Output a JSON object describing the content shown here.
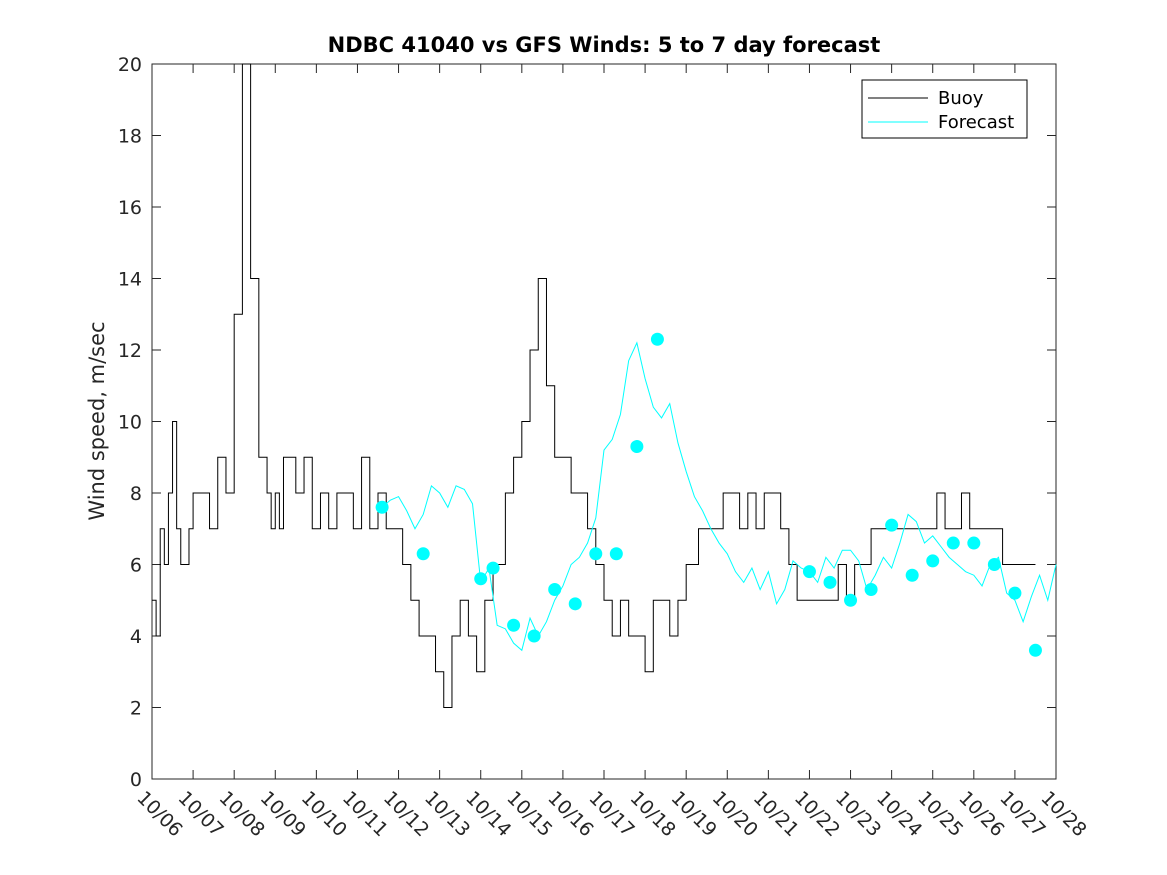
{
  "chart_data": {
    "type": "line",
    "title": "NDBC 41040 vs GFS Winds: 5 to 7 day forecast",
    "xlabel": "",
    "ylabel": "Wind speed, m/sec",
    "xlim": [
      0,
      22
    ],
    "ylim": [
      0,
      20
    ],
    "x_tick_labels": [
      "10/06",
      "10/07",
      "10/08",
      "10/09",
      "10/10",
      "10/11",
      "10/12",
      "10/13",
      "10/14",
      "10/15",
      "10/16",
      "10/17",
      "10/18",
      "10/19",
      "10/20",
      "10/21",
      "10/22",
      "10/23",
      "10/24",
      "10/25",
      "10/26",
      "10/27",
      "10/28"
    ],
    "y_ticks": [
      0,
      2,
      4,
      6,
      8,
      10,
      12,
      14,
      16,
      18,
      20
    ],
    "grid": false,
    "legend": {
      "position": "top-right",
      "entries": [
        "Buoy",
        "Forecast"
      ]
    },
    "colors": {
      "buoy": "#000000",
      "forecast": "#00ffff",
      "markers": "#00ffff"
    },
    "series": [
      {
        "name": "Buoy",
        "x": [
          0,
          0.1,
          0.2,
          0.3,
          0.4,
          0.5,
          0.6,
          0.7,
          0.9,
          1.0,
          1.2,
          1.4,
          1.6,
          1.8,
          2.0,
          2.2,
          2.4,
          2.6,
          2.8,
          2.9,
          3.0,
          3.1,
          3.2,
          3.3,
          3.5,
          3.7,
          3.9,
          4.1,
          4.3,
          4.5,
          4.7,
          4.9,
          5.1,
          5.3,
          5.5,
          5.7,
          5.9,
          6.1,
          6.3,
          6.5,
          6.7,
          6.9,
          7.1,
          7.3,
          7.5,
          7.7,
          7.9,
          8.1,
          8.3,
          8.5,
          8.6,
          8.7,
          8.8,
          9.0,
          9.2,
          9.4,
          9.6,
          9.8,
          10.0,
          10.2,
          10.4,
          10.6,
          10.8,
          11.0,
          11.2,
          11.4,
          11.6,
          11.8,
          12.0,
          12.2,
          12.4,
          12.6,
          12.8,
          12.9,
          13.0,
          13.1,
          13.2,
          13.3,
          13.5,
          13.7,
          13.9,
          14.1,
          14.3,
          14.5,
          14.7,
          14.9,
          15.1,
          15.3,
          15.5,
          15.7,
          15.9,
          16.1,
          16.3,
          16.5,
          16.7,
          16.9,
          17.1,
          17.3,
          17.5,
          17.7,
          17.9,
          18.1,
          18.3,
          18.5,
          18.7,
          18.9,
          19.1,
          19.3,
          19.5,
          19.7,
          19.9,
          20.1,
          20.3,
          20.5,
          20.7,
          20.9,
          21.1,
          21.3,
          21.5
        ],
        "y": [
          5,
          4,
          7,
          6,
          8,
          10,
          7,
          6,
          7,
          8,
          8,
          7,
          9,
          8,
          13,
          20,
          14,
          9,
          8,
          7,
          8,
          7,
          9,
          9,
          8,
          9,
          7,
          8,
          7,
          8,
          8,
          7,
          9,
          7,
          8,
          7,
          7,
          6,
          5,
          4,
          4,
          3,
          2,
          4,
          5,
          4,
          3,
          5,
          6,
          6,
          8,
          8,
          9,
          10,
          12,
          14,
          11,
          9,
          9,
          8,
          8,
          7,
          6,
          5,
          4,
          5,
          4,
          4,
          3,
          5,
          5,
          4,
          5,
          5,
          6,
          6,
          6,
          7,
          7,
          7,
          8,
          8,
          7,
          8,
          7,
          8,
          8,
          7,
          6,
          5,
          5,
          5,
          5,
          5,
          6,
          5,
          6,
          6,
          7,
          7,
          7,
          7,
          7,
          7,
          7,
          7,
          8,
          7,
          7,
          8,
          7,
          7,
          7,
          7,
          6,
          6,
          6,
          6,
          6
        ]
      },
      {
        "name": "Forecast",
        "x": [
          5.6,
          5.8,
          6.0,
          6.2,
          6.4,
          6.6,
          6.8,
          7.0,
          7.2,
          7.4,
          7.6,
          7.8,
          8.0,
          8.2,
          8.4,
          8.6,
          8.8,
          9.0,
          9.2,
          9.4,
          9.6,
          9.8,
          10.0,
          10.2,
          10.4,
          10.6,
          10.8,
          11.0,
          11.2,
          11.4,
          11.6,
          11.8,
          12.0,
          12.2,
          12.4,
          12.6,
          12.8,
          13.0,
          13.2,
          13.4,
          13.6,
          13.8,
          14.0,
          14.2,
          14.4,
          14.6,
          14.8,
          15.0,
          15.2,
          15.4,
          15.6,
          15.8,
          16.0,
          16.2,
          16.4,
          16.6,
          16.8,
          17.0,
          17.2,
          17.4,
          17.6,
          17.8,
          18.0,
          18.2,
          18.4,
          18.6,
          18.8,
          19.0,
          19.2,
          19.4,
          19.6,
          19.8,
          20.0,
          20.2,
          20.4,
          20.6,
          20.8,
          21.0,
          21.2,
          21.4,
          21.6,
          21.8,
          22.0
        ],
        "y": [
          7.6,
          7.8,
          7.9,
          7.5,
          7.0,
          7.4,
          8.2,
          8.0,
          7.6,
          8.2,
          8.1,
          7.7,
          5.5,
          5.9,
          4.3,
          4.2,
          3.8,
          3.6,
          4.5,
          4.0,
          4.4,
          5.0,
          5.4,
          6.0,
          6.2,
          6.6,
          7.3,
          9.2,
          9.5,
          10.2,
          11.7,
          12.2,
          11.2,
          10.4,
          10.1,
          10.5,
          9.4,
          8.6,
          7.9,
          7.5,
          7.0,
          6.6,
          6.3,
          5.8,
          5.5,
          5.9,
          5.3,
          5.8,
          4.9,
          5.3,
          6.1,
          5.9,
          5.8,
          5.5,
          6.2,
          5.9,
          6.4,
          6.4,
          6.1,
          5.3,
          5.7,
          6.2,
          5.9,
          6.6,
          7.4,
          7.2,
          6.6,
          6.8,
          6.5,
          6.2,
          6.0,
          5.8,
          5.7,
          5.4,
          6.0,
          6.2,
          5.2,
          5.0,
          4.4,
          5.1,
          5.7,
          5.0,
          6.0
        ]
      },
      {
        "name": "",
        "x": [
          5.6,
          6.6,
          8.0,
          8.3,
          8.8,
          9.3,
          9.8,
          10.3,
          10.8,
          11.3,
          11.8,
          12.3,
          16.0,
          16.5,
          17.0,
          17.5,
          18.0,
          18.5,
          19.0,
          19.5,
          20.0,
          20.5,
          21.0,
          21.5
        ],
        "y": [
          7.6,
          6.3,
          5.6,
          5.9,
          4.3,
          4.0,
          5.3,
          4.9,
          6.3,
          6.3,
          9.3,
          12.3,
          5.8,
          5.5,
          5.0,
          5.3,
          7.1,
          5.7,
          6.1,
          6.6,
          6.6,
          6.0,
          5.2,
          3.6
        ],
        "style": "markers"
      }
    ]
  }
}
